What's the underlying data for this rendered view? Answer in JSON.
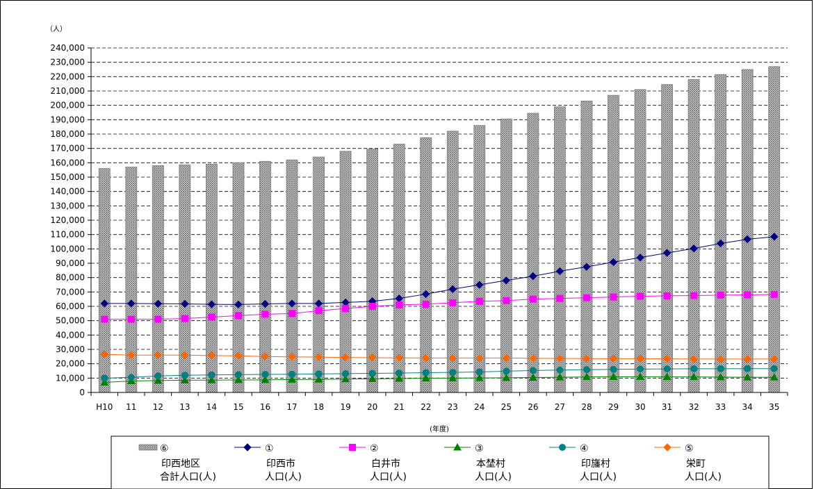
{
  "chart_data": {
    "type": "bar",
    "y_unit_label": "（人）",
    "x_unit_label": "(年度)",
    "categories": [
      "H10",
      "11",
      "12",
      "13",
      "14",
      "15",
      "16",
      "17",
      "18",
      "19",
      "20",
      "21",
      "22",
      "23",
      "24",
      "25",
      "26",
      "27",
      "28",
      "29",
      "30",
      "31",
      "32",
      "33",
      "34",
      "35"
    ],
    "ylim": [
      0,
      240000
    ],
    "ytick_step": 10000,
    "grid": true,
    "legend_position": "bottom",
    "bar_series": {
      "marker": "⑥",
      "name_lines": [
        "印西地区",
        "合計人口(人)"
      ],
      "values": [
        156000,
        157000,
        158000,
        158500,
        159000,
        160000,
        161000,
        162000,
        164000,
        168000,
        169500,
        173000,
        177500,
        182000,
        186000,
        190500,
        194500,
        199000,
        203000,
        207000,
        211000,
        214500,
        218000,
        221500,
        225000,
        227000
      ],
      "color": "#c0c0c0"
    },
    "line_series": [
      {
        "marker": "①",
        "name_lines": [
          "印西市",
          "人口(人)"
        ],
        "shape": "diamond",
        "color": "#000080",
        "values": [
          62000,
          62000,
          61800,
          61700,
          61400,
          61300,
          61700,
          62000,
          62000,
          62700,
          63500,
          65500,
          68500,
          72000,
          75000,
          78000,
          81000,
          84500,
          87500,
          90800,
          94000,
          97200,
          100300,
          103800,
          106700,
          108500
        ]
      },
      {
        "marker": "②",
        "name_lines": [
          "白井市",
          "人口(人)"
        ],
        "shape": "square",
        "color": "#ff00ff",
        "values": [
          51000,
          51000,
          51000,
          51500,
          52500,
          53500,
          54500,
          55000,
          57000,
          58500,
          60000,
          61000,
          61500,
          62500,
          63500,
          64000,
          65000,
          65500,
          66000,
          66500,
          67000,
          67300,
          67500,
          67800,
          68000,
          68300
        ]
      },
      {
        "marker": "③",
        "name_lines": [
          "本埜村",
          "人口(人)"
        ],
        "shape": "triangle",
        "color": "#008000",
        "values": [
          7000,
          8000,
          8300,
          8500,
          8600,
          8700,
          8800,
          9000,
          9100,
          9300,
          9500,
          9700,
          9900,
          10000,
          10100,
          10200,
          10400,
          10600,
          10800,
          10900,
          10900,
          10800,
          10800,
          10700,
          10600,
          10600
        ]
      },
      {
        "marker": "④",
        "name_lines": [
          "印旛村",
          "人口(人)"
        ],
        "shape": "circle",
        "color": "#008080",
        "values": [
          10000,
          10500,
          11500,
          12000,
          12200,
          12400,
          12600,
          12700,
          12900,
          13100,
          13300,
          13500,
          13800,
          14000,
          14300,
          14800,
          15300,
          15600,
          15900,
          16100,
          16300,
          16400,
          16500,
          16500,
          16600,
          16600
        ]
      },
      {
        "marker": "⑤",
        "name_lines": [
          "栄町",
          "人口(人)"
        ],
        "shape": "diamond",
        "color": "#ff6600",
        "values": [
          26500,
          26000,
          26000,
          26000,
          25700,
          25500,
          25000,
          24800,
          24600,
          24400,
          24200,
          24100,
          24000,
          24000,
          24000,
          24000,
          23800,
          23700,
          23600,
          23500,
          23500,
          23400,
          23300,
          23300,
          23300,
          23300
        ]
      }
    ]
  }
}
